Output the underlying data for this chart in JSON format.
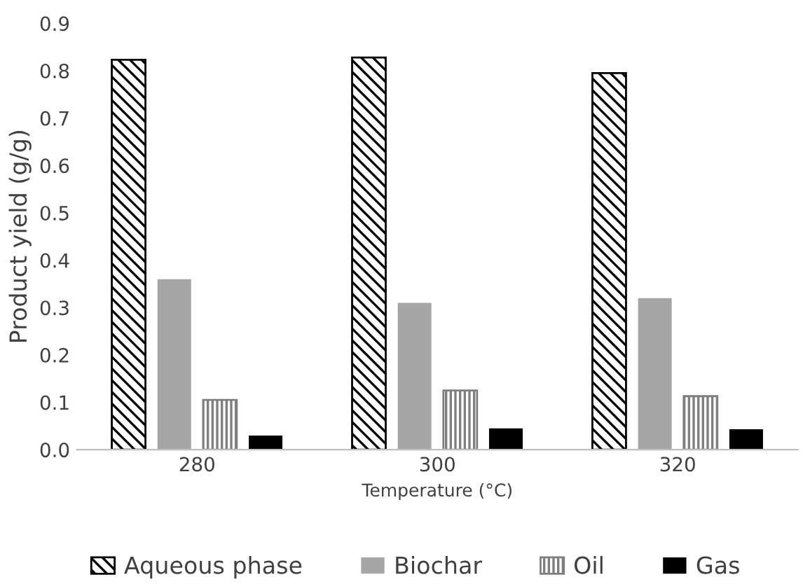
{
  "chart_data": {
    "type": "bar",
    "xlabel": "Temperature (°C)",
    "ylabel": "Product yield (g/g)",
    "categories": [
      "280",
      "300",
      "320"
    ],
    "series": [
      {
        "name": "Aqueous phase",
        "color": "#000000",
        "values": [
          0.823,
          0.828,
          0.795
        ]
      },
      {
        "name": "Biochar",
        "color": "#a6a6a6",
        "values": [
          0.36,
          0.31,
          0.32
        ]
      },
      {
        "name": "Oil",
        "color": "#7f7f7f",
        "values": [
          0.105,
          0.125,
          0.113
        ]
      },
      {
        "name": "Gas",
        "color": "#000000",
        "values": [
          0.03,
          0.045,
          0.043
        ]
      }
    ],
    "ylim": [
      0,
      0.9
    ],
    "yticks": [
      {
        "value": 0,
        "label": "0.0"
      },
      {
        "value": 0.1,
        "label": "0.1"
      },
      {
        "value": 0.2,
        "label": "0.2"
      },
      {
        "value": 0.3,
        "label": "0.3"
      },
      {
        "value": 0.4,
        "label": "0.4"
      },
      {
        "value": 0.5,
        "label": "0.5"
      },
      {
        "value": 0.6,
        "label": "0.6"
      },
      {
        "value": 0.7,
        "label": "0.7"
      },
      {
        "value": 0.8,
        "label": "0.8"
      },
      {
        "value": 0.9,
        "label": "0.9"
      }
    ],
    "grid": false,
    "legend": "bottom"
  }
}
